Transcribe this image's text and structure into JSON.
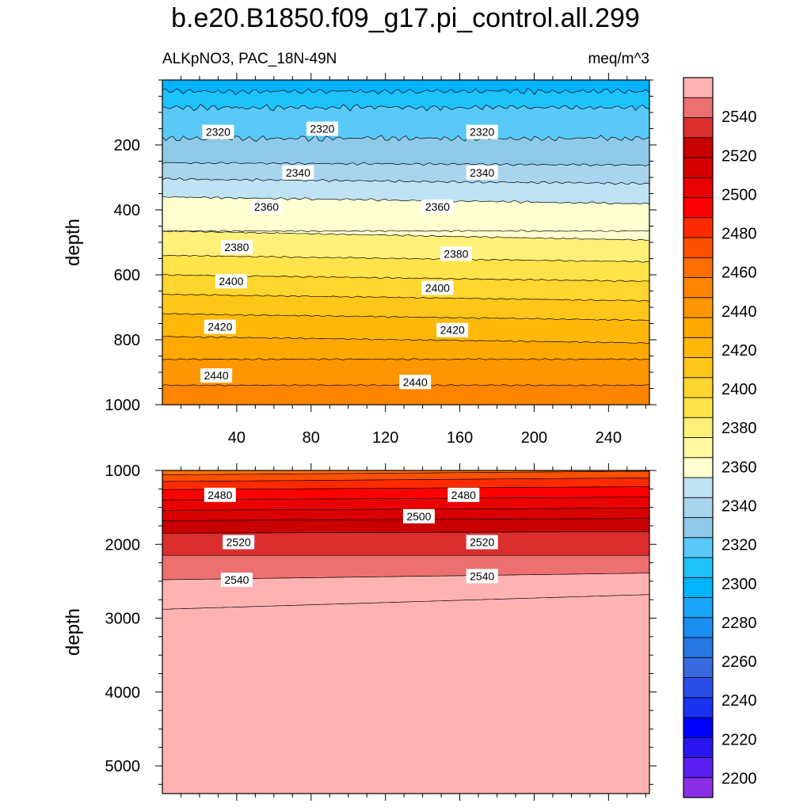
{
  "chart_data": {
    "type": "heatmap",
    "title": "b.e20.B1850.f09_g17.pi_control.all.299",
    "variable_label": "ALKpNO3, PAC_18N-49N",
    "units_label": "meq/m^3",
    "colorbar": {
      "min": 2190,
      "max": 2560,
      "step": 10,
      "tick_labels": [
        "2200",
        "2220",
        "2240",
        "2260",
        "2280",
        "2300",
        "2320",
        "2340",
        "2360",
        "2380",
        "2400",
        "2420",
        "2440",
        "2460",
        "2480",
        "2500",
        "2520",
        "2540"
      ],
      "colors": [
        "#8a2ee6",
        "#5a1ef0",
        "#2a14f0",
        "#0000ff",
        "#1a32f2",
        "#2a4ee8",
        "#3a6ae0",
        "#2878e6",
        "#1a8ef0",
        "#18a4f8",
        "#00b4ff",
        "#1ec2fa",
        "#5ac8f6",
        "#8ecae8",
        "#a8d4ee",
        "#bfe2f4",
        "#ffffd0",
        "#fff8a0",
        "#fff07a",
        "#ffe34a",
        "#ffd52e",
        "#ffc61a",
        "#ffb80a",
        "#ffa800",
        "#ff9600",
        "#ff8400",
        "#ff6e00",
        "#ff5000",
        "#ff2a00",
        "#ff0000",
        "#ea0000",
        "#d80000",
        "#c80000",
        "#dc2e2e",
        "#ec7070",
        "#ffb2b2"
      ]
    },
    "panels": [
      {
        "name": "upper",
        "x_ticks": [
          "40",
          "80",
          "120",
          "160",
          "200",
          "240"
        ],
        "y_ticks": [
          "200",
          "400",
          "600",
          "800",
          "1000"
        ],
        "ylabel": "depth",
        "xlim": [
          0,
          262
        ],
        "ylim": [
          0,
          1000
        ],
        "contour_labels": [
          {
            "text": "2320",
            "x": 30,
            "y": 160
          },
          {
            "text": "2320",
            "x": 86,
            "y": 150
          },
          {
            "text": "2320",
            "x": 172,
            "y": 160
          },
          {
            "text": "2340",
            "x": 73,
            "y": 285
          },
          {
            "text": "2340",
            "x": 172,
            "y": 285
          },
          {
            "text": "2360",
            "x": 56,
            "y": 390
          },
          {
            "text": "2360",
            "x": 148,
            "y": 390
          },
          {
            "text": "2380",
            "x": 40,
            "y": 515
          },
          {
            "text": "2380",
            "x": 158,
            "y": 535
          },
          {
            "text": "2400",
            "x": 37,
            "y": 620
          },
          {
            "text": "2400",
            "x": 148,
            "y": 640
          },
          {
            "text": "2420",
            "x": 31,
            "y": 760
          },
          {
            "text": "2420",
            "x": 156,
            "y": 770
          },
          {
            "text": "2440",
            "x": 29,
            "y": 910
          },
          {
            "text": "2440",
            "x": 136,
            "y": 930
          }
        ]
      },
      {
        "name": "lower",
        "x_ticks": [],
        "y_ticks": [
          "1000",
          "2000",
          "3000",
          "4000",
          "5000"
        ],
        "ylabel": "depth",
        "xlim": [
          0,
          262
        ],
        "ylim": [
          1000,
          5375
        ],
        "contour_labels": [
          {
            "text": "2480",
            "x": 31,
            "y": 1330
          },
          {
            "text": "2480",
            "x": 162,
            "y": 1330
          },
          {
            "text": "2500",
            "x": 138,
            "y": 1620
          },
          {
            "text": "2520",
            "x": 41,
            "y": 1970
          },
          {
            "text": "2520",
            "x": 172,
            "y": 1970
          },
          {
            "text": "2540",
            "x": 40,
            "y": 2480
          },
          {
            "text": "2540",
            "x": 172,
            "y": 2430
          }
        ]
      }
    ]
  }
}
